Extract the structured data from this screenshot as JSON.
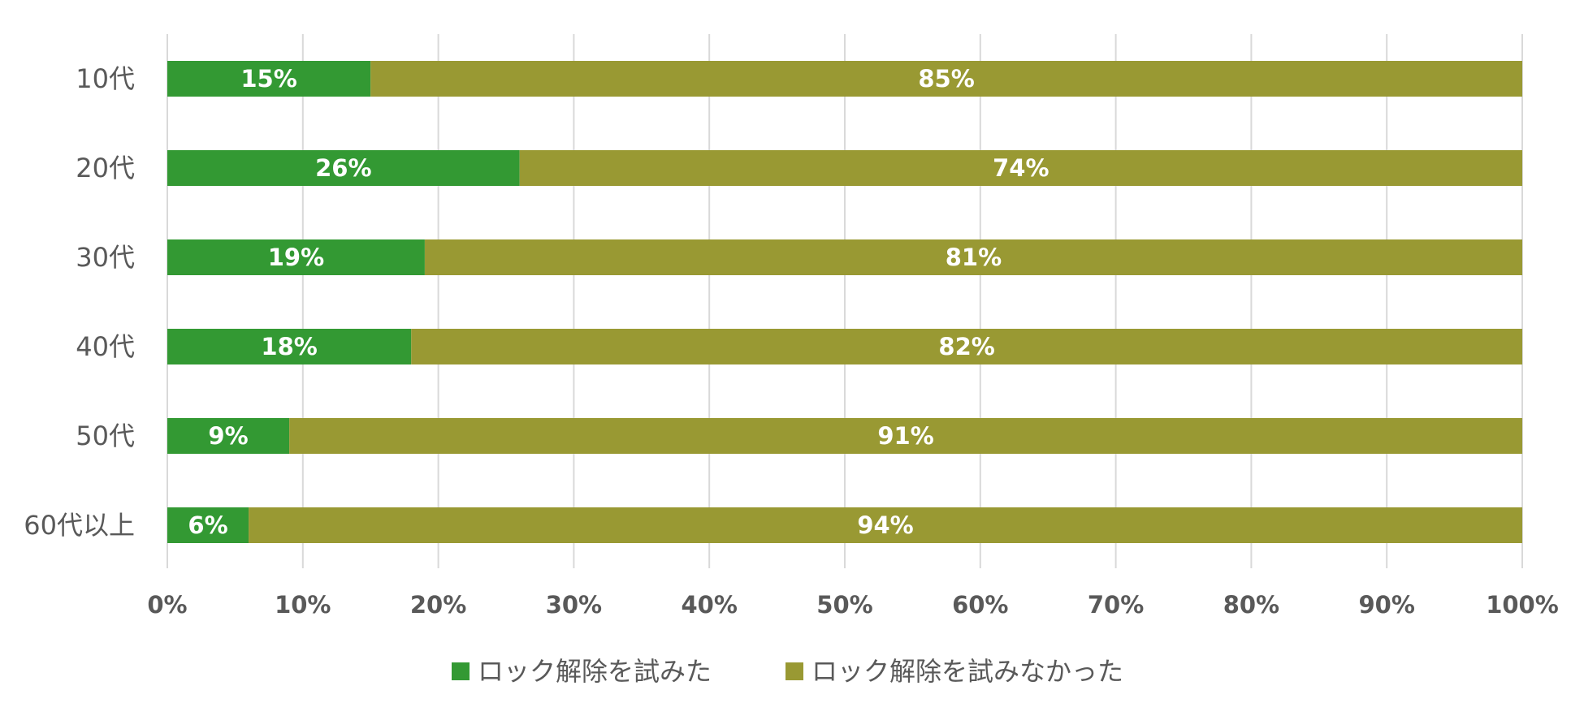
{
  "chart_data": {
    "type": "bar",
    "orientation": "horizontal",
    "stacked": true,
    "categories": [
      "10代",
      "20代",
      "30代",
      "40代",
      "50代",
      "60代以上"
    ],
    "series": [
      {
        "name": "ロック解除を試みた",
        "values": [
          15,
          26,
          19,
          18,
          9,
          6
        ],
        "color": "#339933"
      },
      {
        "name": "ロック解除を試みなかった",
        "values": [
          85,
          74,
          81,
          82,
          91,
          94
        ],
        "color": "#999933"
      }
    ],
    "xlim": [
      0,
      100
    ],
    "x_ticks": [
      0,
      10,
      20,
      30,
      40,
      50,
      60,
      70,
      80,
      90,
      100
    ],
    "x_tick_labels": [
      "0%",
      "10%",
      "20%",
      "30%",
      "40%",
      "50%",
      "60%",
      "70%",
      "80%",
      "90%",
      "100%"
    ],
    "data_labels": [
      [
        "15%",
        "26%",
        "19%",
        "18%",
        "9%",
        "6%"
      ],
      [
        "85%",
        "74%",
        "81%",
        "82%",
        "91%",
        "94%"
      ]
    ],
    "grid": "vertical",
    "legend": "bottom"
  }
}
